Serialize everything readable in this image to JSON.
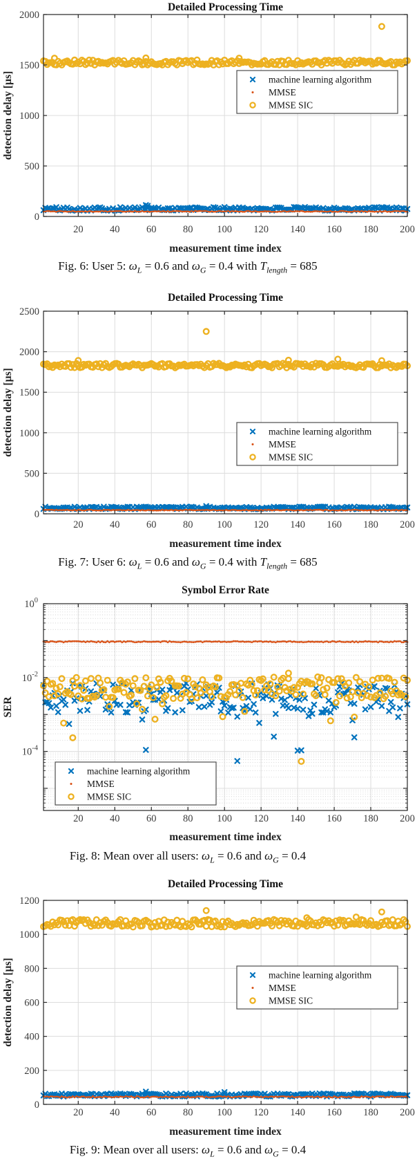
{
  "colors": {
    "ml_blue": "#0072BD",
    "mmse_red": "#D95319",
    "mmse_sic_yellow": "#EDB120",
    "axis": "#262626",
    "tick_label": "#3b3b3b",
    "grid": "#dcdcdc",
    "minor_grid": "#cccccc",
    "legend_border": "#4d4d4d"
  },
  "charts": [
    {
      "id": "fig6",
      "type": "scatter",
      "title": "Detailed Processing Time",
      "xlabel": "measurement time index",
      "ylabel": "detection delay [µs]",
      "yscale": "linear",
      "xlim": [
        1,
        200
      ],
      "xticks": [
        20,
        40,
        60,
        80,
        100,
        120,
        140,
        160,
        180,
        200
      ],
      "ylim": [
        0,
        2000
      ],
      "yticks": [
        0,
        500,
        1000,
        1500,
        2000
      ],
      "n_points": 200,
      "seed": 101,
      "grid": "major",
      "legend_position": "right-center",
      "series": [
        {
          "name": "machine learning algorithm",
          "marker": "x",
          "color_key": "ml_blue",
          "baseline": 75,
          "noise": 18,
          "outliers": [
            [
              57,
              112
            ],
            [
              58,
              105
            ]
          ]
        },
        {
          "name": "MMSE",
          "marker": "dot",
          "color_key": "mmse_red",
          "baseline": 50,
          "noise": 5,
          "outliers": []
        },
        {
          "name": "MMSE SIC",
          "marker": "circle",
          "color_key": "mmse_sic_yellow",
          "baseline": 1525,
          "noise": 25,
          "outliers": [
            [
              7,
              1568
            ],
            [
              57,
              1570
            ],
            [
              108,
              1568
            ],
            [
              186,
              1882
            ]
          ]
        }
      ],
      "caption": [
        {
          "t": "Fig. 6: User 5: "
        },
        {
          "t": "ω",
          "i": true
        },
        {
          "t": "L",
          "sub": true
        },
        {
          "t": " = 0.6 and "
        },
        {
          "t": "ω",
          "i": true
        },
        {
          "t": "G",
          "sub": true
        },
        {
          "t": " = 0.4 with "
        },
        {
          "t": "T",
          "i": true
        },
        {
          "t": "length",
          "sub": true
        },
        {
          "t": " = 685"
        }
      ]
    },
    {
      "id": "fig7",
      "type": "scatter",
      "title": "Detailed Processing Time",
      "xlabel": "measurement time index",
      "ylabel": "detection delay [µs]",
      "yscale": "linear",
      "xlim": [
        1,
        200
      ],
      "xticks": [
        20,
        40,
        60,
        80,
        100,
        120,
        140,
        160,
        180,
        200
      ],
      "ylim": [
        0,
        2500
      ],
      "yticks": [
        0,
        500,
        1000,
        1500,
        2000,
        2500
      ],
      "n_points": 200,
      "seed": 202,
      "grid": "major",
      "legend_position": "right-center",
      "series": [
        {
          "name": "machine learning algorithm",
          "marker": "x",
          "color_key": "ml_blue",
          "baseline": 72,
          "noise": 16,
          "outliers": [
            [
              90,
              95
            ]
          ]
        },
        {
          "name": "MMSE",
          "marker": "dot",
          "color_key": "mmse_red",
          "baseline": 45,
          "noise": 5,
          "outliers": []
        },
        {
          "name": "MMSE SIC",
          "marker": "circle",
          "color_key": "mmse_sic_yellow",
          "baseline": 1830,
          "noise": 28,
          "outliers": [
            [
              20,
              1892
            ],
            [
              90,
              2250
            ],
            [
              135,
              1895
            ],
            [
              162,
              1908
            ],
            [
              186,
              1890
            ]
          ]
        }
      ],
      "caption": [
        {
          "t": "Fig. 7: User 6: "
        },
        {
          "t": "ω",
          "i": true
        },
        {
          "t": "L",
          "sub": true
        },
        {
          "t": " = 0.6 and "
        },
        {
          "t": "ω",
          "i": true
        },
        {
          "t": "G",
          "sub": true
        },
        {
          "t": " = 0.4 with "
        },
        {
          "t": "T",
          "i": true
        },
        {
          "t": "length",
          "sub": true
        },
        {
          "t": " = 685"
        }
      ]
    },
    {
      "id": "fig8",
      "type": "scatter",
      "title": "Symbol Error Rate",
      "xlabel": "measurement time index",
      "ylabel": "SER",
      "yscale": "log",
      "xlim": [
        1,
        200
      ],
      "xticks": [
        20,
        40,
        60,
        80,
        100,
        120,
        140,
        160,
        180,
        200
      ],
      "ylim_exp": [
        -5.6,
        0
      ],
      "ytick_exps": [
        0,
        -2,
        -4
      ],
      "n_points": 200,
      "seed": 303,
      "grid": "major+minor",
      "legend_position": "bottom-left",
      "series": [
        {
          "name": "machine learning algorithm",
          "marker": "x",
          "color_key": "ml_blue",
          "log_base": -2.55,
          "log_spread": 0.4,
          "tail_prob": 0.14,
          "tail": 0.65,
          "outliers": [
            [
              57,
              -3.96
            ],
            [
              107,
              -4.26
            ],
            [
              127,
              -3.6
            ],
            [
              140,
              -3.98
            ],
            [
              142,
              -3.97
            ],
            [
              171,
              -3.62
            ]
          ]
        },
        {
          "name": "MMSE",
          "marker": "dot",
          "color_key": "mmse_red",
          "log_base": -1.03,
          "log_spread": 0.016,
          "tail_prob": 0,
          "tail": 0,
          "outliers": []
        },
        {
          "name": "MMSE SIC",
          "marker": "circle",
          "color_key": "mmse_sic_yellow",
          "log_base": -2.28,
          "log_spread": 0.3,
          "tail_prob": 0.08,
          "tail": 0.8,
          "outliers": [
            [
              17,
              -3.63
            ],
            [
              135,
              -1.88
            ],
            [
              142,
              -4.27
            ]
          ]
        }
      ],
      "caption": [
        {
          "t": "Fig. 8: Mean over all users: "
        },
        {
          "t": "ω",
          "i": true
        },
        {
          "t": "L",
          "sub": true
        },
        {
          "t": " = 0.6 and "
        },
        {
          "t": "ω",
          "i": true
        },
        {
          "t": "G",
          "sub": true
        },
        {
          "t": " = 0.4"
        }
      ]
    },
    {
      "id": "fig9",
      "type": "scatter",
      "title": "Detailed Processing Time",
      "xlabel": "measurement time index",
      "ylabel": "detection delay [µs]",
      "yscale": "linear",
      "xlim": [
        1,
        200
      ],
      "xticks": [
        20,
        40,
        60,
        80,
        100,
        120,
        140,
        160,
        180,
        200
      ],
      "ylim": [
        0,
        1200
      ],
      "yticks": [
        0,
        200,
        400,
        600,
        800,
        1000,
        1200
      ],
      "n_points": 200,
      "seed": 404,
      "grid": "major",
      "legend_position": "right-center",
      "series": [
        {
          "name": "machine learning algorithm",
          "marker": "x",
          "color_key": "ml_blue",
          "baseline": 55,
          "noise": 9,
          "outliers": [
            [
              57,
              75
            ],
            [
              100,
              72
            ]
          ]
        },
        {
          "name": "MMSE",
          "marker": "dot",
          "color_key": "mmse_red",
          "baseline": 44,
          "noise": 4,
          "outliers": []
        },
        {
          "name": "MMSE SIC",
          "marker": "circle",
          "color_key": "mmse_sic_yellow",
          "baseline": 1065,
          "noise": 22,
          "outliers": [
            [
              90,
              1140
            ],
            [
              145,
              1098
            ],
            [
              172,
              1102
            ],
            [
              186,
              1132
            ]
          ]
        }
      ],
      "caption": [
        {
          "t": "Fig. 9: Mean over all users: "
        },
        {
          "t": "ω",
          "i": true
        },
        {
          "t": "L",
          "sub": true
        },
        {
          "t": " = 0.6 and "
        },
        {
          "t": "ω",
          "i": true
        },
        {
          "t": "G",
          "sub": true
        },
        {
          "t": " = 0.4"
        }
      ]
    }
  ]
}
